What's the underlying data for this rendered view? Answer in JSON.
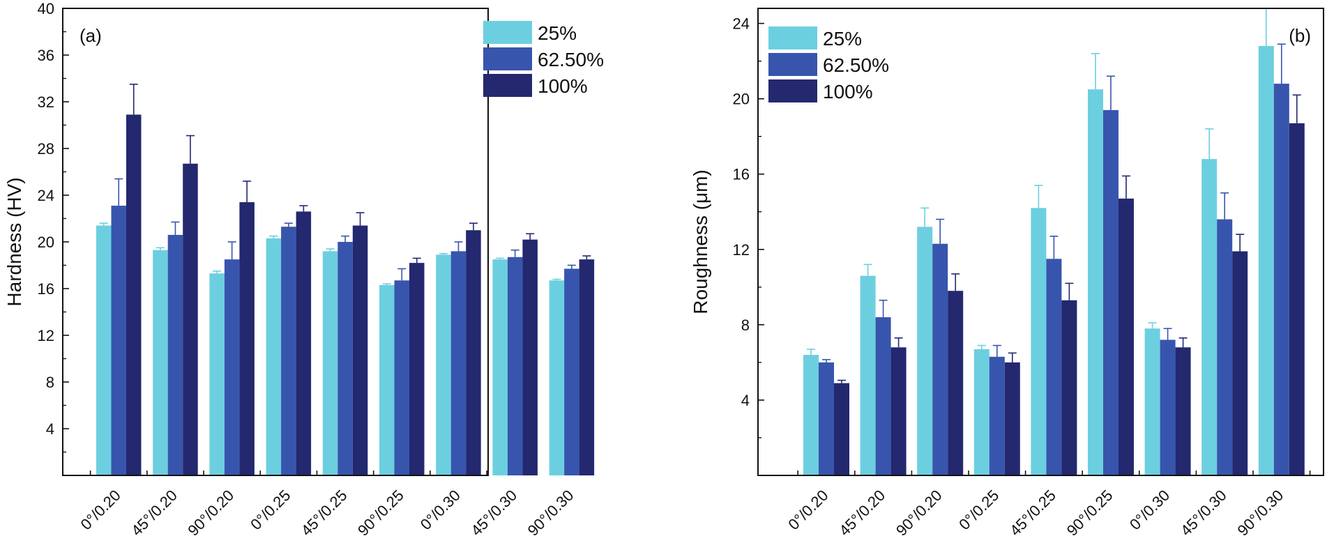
{
  "chart_data": [
    {
      "type": "bar",
      "panel_label": "(a)",
      "title": "",
      "xlabel": "",
      "ylabel": "Hardness (HV)",
      "ylim": [
        0,
        40
      ],
      "yticks": [
        4,
        8,
        12,
        16,
        20,
        24,
        28,
        32,
        36,
        40
      ],
      "grid": false,
      "legend_position": "top-right",
      "categories": [
        "0°/0.20",
        "45°/0.20",
        "90°/0.20",
        "0°/0.25",
        "45°/0.25",
        "90°/0.25",
        "0°/0.30",
        "45°/0.30",
        "90°/0.30"
      ],
      "series": [
        {
          "name": "25%",
          "color": "#6ccfe0",
          "values": [
            21.4,
            19.3,
            17.3,
            20.3,
            19.2,
            16.3,
            18.9,
            18.5,
            16.7
          ],
          "errors": [
            0.2,
            0.2,
            0.2,
            0.2,
            0.2,
            0.1,
            0.1,
            0.1,
            0.1
          ]
        },
        {
          "name": "62.50%",
          "color": "#3855ad",
          "values": [
            23.1,
            20.6,
            18.5,
            21.3,
            20.0,
            16.7,
            19.2,
            18.7,
            17.7
          ],
          "errors": [
            2.3,
            1.1,
            1.5,
            0.3,
            0.5,
            1.0,
            0.8,
            0.6,
            0.3
          ]
        },
        {
          "name": "100%",
          "color": "#23286f",
          "values": [
            30.9,
            26.7,
            23.4,
            22.6,
            21.4,
            18.2,
            21.0,
            20.2,
            18.5
          ],
          "errors": [
            2.6,
            2.4,
            1.8,
            0.5,
            1.1,
            0.4,
            0.6,
            0.5,
            0.3
          ]
        }
      ]
    },
    {
      "type": "bar",
      "panel_label": "(b)",
      "title": "",
      "xlabel": "",
      "ylabel": "Roughness (μm)",
      "ylim": [
        0,
        24.8
      ],
      "yticks": [
        4,
        8,
        12,
        16,
        20,
        24
      ],
      "grid": false,
      "legend_position": "top-left",
      "categories": [
        "0°/0.20",
        "45°/0.20",
        "90°/0.20",
        "0°/0.25",
        "45°/0.25",
        "90°/0.25",
        "0°/0.30",
        "45°/0.30",
        "90°/0.30"
      ],
      "series": [
        {
          "name": "25%",
          "color": "#6ccfe0",
          "values": [
            6.4,
            10.6,
            13.2,
            6.7,
            14.2,
            20.5,
            7.8,
            16.8,
            22.8
          ],
          "errors": [
            0.3,
            0.6,
            1.0,
            0.2,
            1.2,
            1.9,
            0.3,
            1.6,
            2.0
          ]
        },
        {
          "name": "62.50%",
          "color": "#3855ad",
          "values": [
            6.0,
            8.4,
            12.3,
            6.3,
            11.5,
            19.4,
            7.2,
            13.6,
            20.8
          ],
          "errors": [
            0.15,
            0.9,
            1.3,
            0.6,
            1.2,
            1.8,
            0.6,
            1.4,
            2.1
          ]
        },
        {
          "name": "100%",
          "color": "#23286f",
          "values": [
            4.9,
            6.8,
            9.8,
            6.0,
            9.3,
            14.7,
            6.8,
            11.9,
            18.7
          ],
          "errors": [
            0.15,
            0.5,
            0.9,
            0.5,
            0.9,
            1.2,
            0.5,
            0.9,
            1.5
          ]
        }
      ]
    }
  ]
}
